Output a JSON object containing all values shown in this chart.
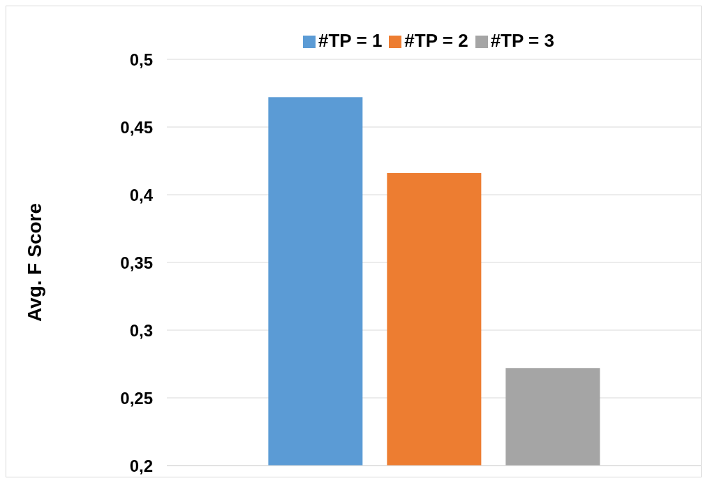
{
  "chart_data": {
    "type": "bar",
    "ylabel": "Avg. F Score",
    "categories": [
      null
    ],
    "series": [
      {
        "name": "#TP = 1",
        "color": "#5b9bd5",
        "values": [
          0.472
        ]
      },
      {
        "name": "#TP = 2",
        "color": "#ed7d31",
        "values": [
          0.416
        ]
      },
      {
        "name": "#TP = 3",
        "color": "#a5a5a5",
        "values": [
          0.272
        ]
      }
    ],
    "ylim": [
      0.2,
      0.5
    ],
    "yticks": [
      {
        "value": 0.2,
        "label": "0,2"
      },
      {
        "value": 0.25,
        "label": "0,25"
      },
      {
        "value": 0.3,
        "label": "0,3"
      },
      {
        "value": 0.35,
        "label": "0,35"
      },
      {
        "value": 0.4,
        "label": "0,4"
      },
      {
        "value": 0.45,
        "label": "0,45"
      },
      {
        "value": 0.5,
        "label": "0,5"
      }
    ],
    "grid": "y",
    "legend": "top"
  }
}
